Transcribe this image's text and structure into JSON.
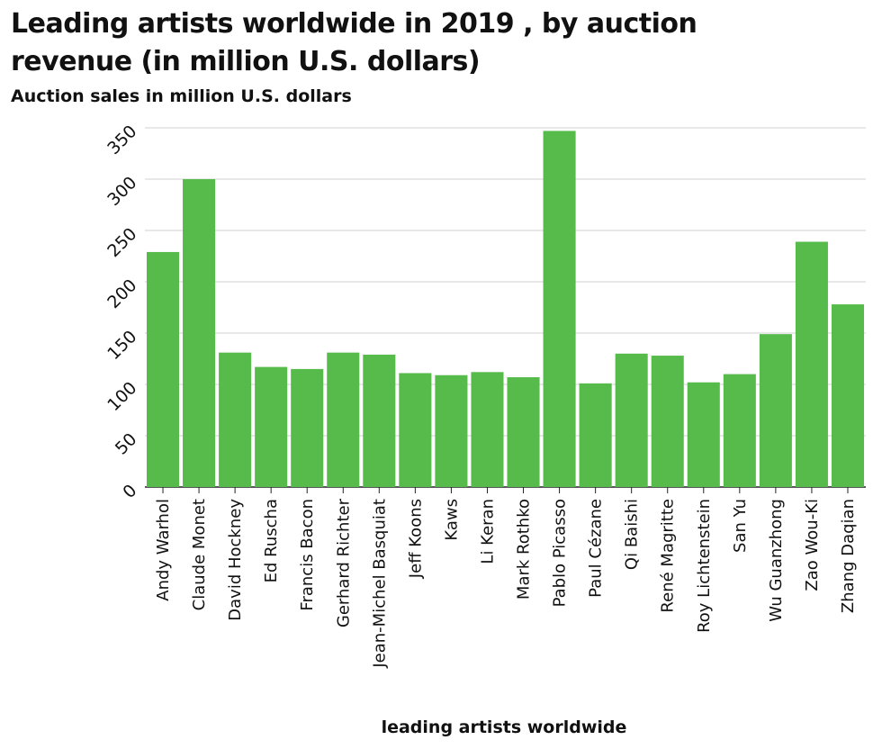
{
  "chart_data": {
    "type": "bar",
    "title": "Leading artists worldwide in 2019 , by auction revenue (in million U.S. dollars)",
    "xlabel": "leading artists worldwide",
    "ylabel": "Auction sales in million U.S. dollars",
    "ylim": [
      0,
      350
    ],
    "yticks": [
      "0",
      "50",
      "100",
      "150",
      "200",
      "250",
      "300",
      "350"
    ],
    "grid": true,
    "bar_color": "#56bb4b",
    "categories": [
      "Andy Warhol",
      "Claude Monet",
      "David Hockney",
      "Ed Ruscha",
      "Francis Bacon",
      "Gerhard Richter",
      "Jean-Michel Basquiat",
      "Jeff Koons",
      "Kaws",
      "Li Keran",
      "Mark Rothko",
      "Pablo Picasso",
      "Paul Cézane",
      "Qi Baishi",
      "René Magritte",
      "Roy Lichtenstein",
      "San Yu",
      "Wu Guanzhong",
      "Zao Wou-Ki",
      "Zhang Daqian"
    ],
    "values": [
      229,
      300,
      131,
      117,
      115,
      131,
      129,
      111,
      109,
      112,
      107,
      347,
      101,
      130,
      128,
      102,
      110,
      149,
      239,
      178
    ]
  }
}
